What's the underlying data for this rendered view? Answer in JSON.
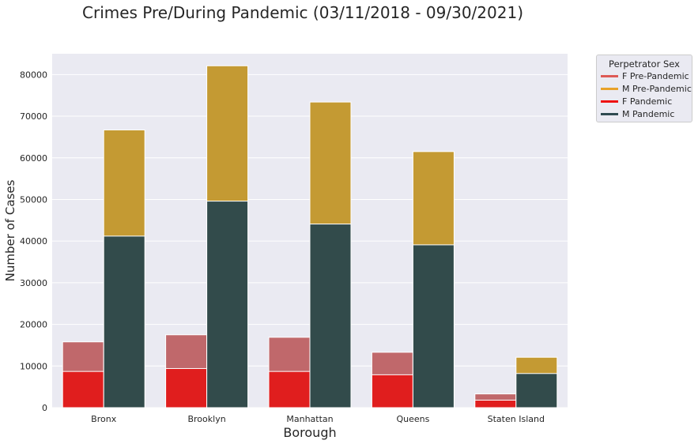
{
  "chart_data": {
    "type": "bar",
    "title": "Crimes Pre/During Pandemic (03/11/2018 - 09/30/2021)",
    "xlabel": "Borough",
    "ylabel": "Number of Cases",
    "ylim": [
      0,
      85000
    ],
    "yticks": [
      0,
      10000,
      20000,
      30000,
      40000,
      50000,
      60000,
      70000,
      80000
    ],
    "categories": [
      "Bronx",
      "Brooklyn",
      "Manhattan",
      "Queens",
      "Staten Island"
    ],
    "grid": true,
    "legend_position": "outside-top-right",
    "legend_title": "Perpetrator Sex",
    "series": [
      {
        "name": "F Pre-Pandemic",
        "color": "#c0686b",
        "group": "F",
        "values": [
          15800,
          17500,
          16900,
          13300,
          3300
        ]
      },
      {
        "name": "M Pre-Pandemic",
        "color": "#c49a33",
        "group": "M",
        "values": [
          66700,
          82100,
          73400,
          61500,
          12100
        ]
      },
      {
        "name": "F Pandemic",
        "color": "#e01e1e",
        "group": "F",
        "values": [
          8700,
          9400,
          8700,
          7900,
          1800
        ]
      },
      {
        "name": "M Pandemic",
        "color": "#324b4b",
        "group": "M",
        "values": [
          41200,
          49600,
          44100,
          39100,
          8200
        ]
      }
    ],
    "legend_colors": [
      "#dd5a55",
      "#e8a229",
      "#ee1111",
      "#2f4a50"
    ]
  }
}
